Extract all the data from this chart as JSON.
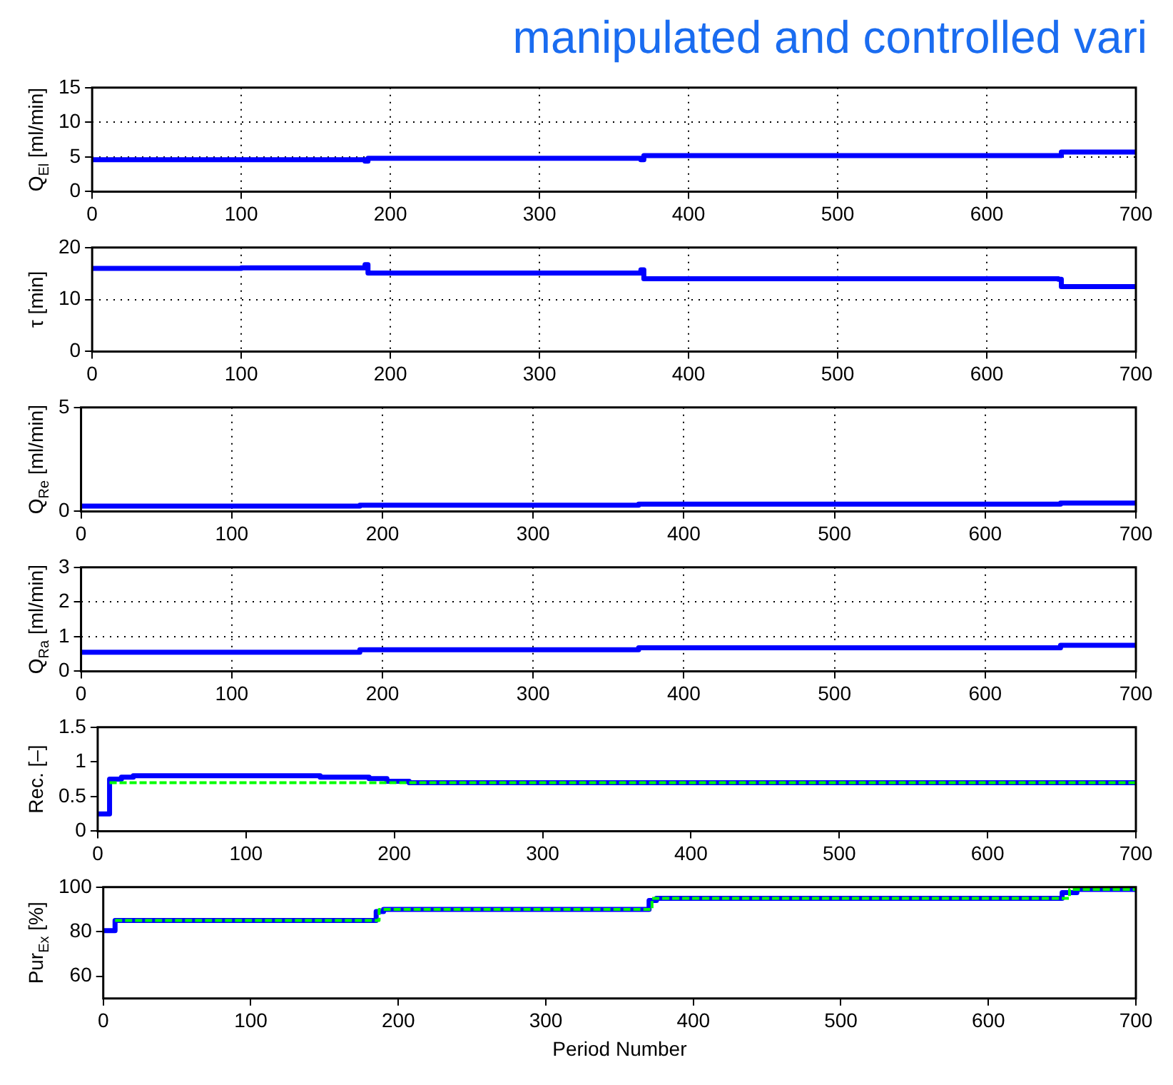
{
  "chart_data": [
    {
      "type": "step",
      "title": "manipulated and controlled vari",
      "ylabel": "Q$_{El}$ [ml/min]",
      "xlim": [
        0,
        700
      ],
      "xticks": [
        0,
        100,
        200,
        300,
        400,
        500,
        600,
        700
      ],
      "ylim": [
        0,
        15
      ],
      "yticks": [
        0,
        5,
        10,
        15
      ],
      "grid": true,
      "marker": "none",
      "x": [
        0,
        183,
        185,
        368,
        370,
        648,
        650,
        700
      ],
      "series": [
        {
          "color": "#0000ff",
          "values": [
            4.6,
            4.4,
            4.8,
            4.6,
            5.2,
            5.2,
            5.7,
            5.7
          ]
        }
      ]
    },
    {
      "type": "step",
      "ylabel": "τ [min]",
      "xlim": [
        0,
        700
      ],
      "xticks": [
        0,
        100,
        200,
        300,
        400,
        500,
        600,
        700
      ],
      "ylim": [
        0,
        20
      ],
      "yticks": [
        0,
        10,
        20
      ],
      "grid": true,
      "marker": "none",
      "x": [
        0,
        100,
        183,
        185,
        368,
        370,
        648,
        650,
        700
      ],
      "series": [
        {
          "color": "#0000ff",
          "values": [
            16,
            16.1,
            16.7,
            15.1,
            15.7,
            14,
            13.9,
            12.5,
            12.5
          ]
        }
      ]
    },
    {
      "type": "step",
      "ylabel": "Q$_{Re}$ [ml/min]",
      "xlim": [
        0,
        700
      ],
      "xticks": [
        0,
        100,
        200,
        300,
        400,
        500,
        600,
        700
      ],
      "ylim": [
        0,
        5
      ],
      "yticks": [
        0,
        5
      ],
      "grid": true,
      "marker": "none",
      "x": [
        0,
        185,
        370,
        650,
        700
      ],
      "series": [
        {
          "color": "#0000ff",
          "values": [
            0.25,
            0.3,
            0.35,
            0.4,
            0.4
          ]
        }
      ]
    },
    {
      "type": "step",
      "ylabel": "Q$_{Ra}$ [ml/min]",
      "xlim": [
        0,
        700
      ],
      "xticks": [
        0,
        100,
        200,
        300,
        400,
        500,
        600,
        700
      ],
      "ylim": [
        0,
        3
      ],
      "yticks": [
        0,
        1,
        2,
        3
      ],
      "grid": true,
      "marker": "none",
      "x": [
        0,
        185,
        370,
        650,
        700
      ],
      "series": [
        {
          "color": "#0000ff",
          "values": [
            0.55,
            0.62,
            0.68,
            0.75,
            0.75
          ]
        }
      ]
    },
    {
      "type": "step",
      "ylabel": "Rec. [–]",
      "xlim": [
        0,
        700
      ],
      "xticks": [
        0,
        100,
        200,
        300,
        400,
        500,
        600,
        700
      ],
      "ylim": [
        0,
        1.5
      ],
      "yticks": [
        0,
        0.5,
        1,
        1.5
      ],
      "marker": "none",
      "series": [
        {
          "color": "#0000ff",
          "line_style": "solid",
          "x": [
            0,
            8,
            16,
            24,
            100,
            150,
            183,
            195,
            210,
            700
          ],
          "values": [
            0.25,
            0.75,
            0.78,
            0.8,
            0.8,
            0.78,
            0.76,
            0.72,
            0.7,
            0.7
          ]
        },
        {
          "color": "#00ff00",
          "line_style": "dashed",
          "x": [
            8,
            700
          ],
          "values": [
            0.7,
            0.7
          ]
        }
      ]
    },
    {
      "type": "step",
      "ylabel": "Pur$_{Ex}$ [%]",
      "xlabel": "Period Number",
      "xlim": [
        0,
        700
      ],
      "xticks": [
        0,
        100,
        200,
        300,
        400,
        500,
        600,
        700
      ],
      "ylim": [
        50,
        100
      ],
      "yticks": [
        60,
        80,
        100
      ],
      "marker": "none",
      "series": [
        {
          "color": "#0000ff",
          "line_style": "solid",
          "x": [
            0,
            8,
            185,
            190,
            370,
            375,
            650,
            660,
            700
          ],
          "values": [
            80.5,
            85,
            89,
            90,
            94,
            95,
            97.5,
            99,
            99
          ]
        },
        {
          "color": "#00ff00",
          "line_style": "dashed",
          "x": [
            8,
            187,
            372,
            655,
            700
          ],
          "values": [
            85,
            90,
            95,
            99,
            99
          ]
        }
      ]
    }
  ]
}
